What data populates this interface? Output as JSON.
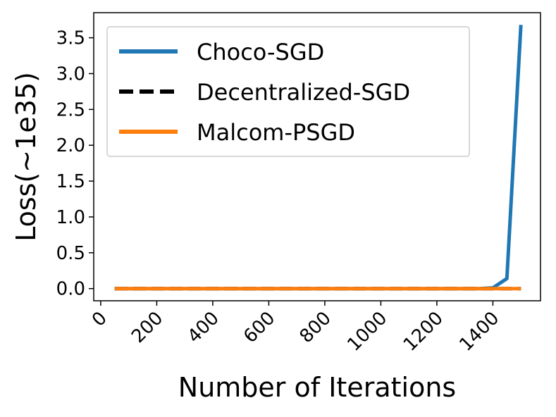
{
  "chart_data": {
    "type": "line",
    "title": "",
    "xlabel": "Number of Iterations",
    "ylabel": "Loss(~1e35)",
    "xlim": [
      -25,
      1570
    ],
    "ylim": [
      -0.17,
      3.85
    ],
    "xticks": [
      0,
      200,
      400,
      600,
      800,
      1000,
      1200,
      1400
    ],
    "xtick_labels": [
      "0",
      "200",
      "400",
      "600",
      "800",
      "1000",
      "1200",
      "1400"
    ],
    "yticks": [
      0.0,
      0.5,
      1.0,
      1.5,
      2.0,
      2.5,
      3.0,
      3.5
    ],
    "ytick_labels": [
      "0.0",
      "0.5",
      "1.0",
      "1.5",
      "2.0",
      "2.5",
      "3.0",
      "3.5"
    ],
    "legend_position": "top-right",
    "grid": false,
    "series": [
      {
        "name": "Choco-SGD",
        "color": "#1f77b4",
        "style": "solid",
        "x": [
          50,
          100,
          150,
          200,
          250,
          300,
          350,
          400,
          450,
          500,
          550,
          600,
          650,
          700,
          750,
          800,
          850,
          900,
          950,
          1000,
          1050,
          1100,
          1150,
          1200,
          1250,
          1300,
          1350,
          1400,
          1450,
          1500
        ],
        "values": [
          0,
          0,
          0,
          0,
          0,
          0,
          0,
          0,
          0,
          0,
          0,
          0,
          0,
          0,
          0,
          0,
          0,
          0,
          0,
          0,
          0,
          0,
          0,
          0,
          0,
          0,
          0,
          0.01,
          0.14,
          3.68
        ]
      },
      {
        "name": "Decentralized-SGD",
        "color": "#000000",
        "style": "dashed",
        "x": [
          50,
          100,
          150,
          200,
          250,
          300,
          350,
          400,
          450,
          500,
          550,
          600,
          650,
          700,
          750,
          800,
          850,
          900,
          950,
          1000,
          1050,
          1100,
          1150,
          1200,
          1250,
          1300,
          1350,
          1400,
          1450,
          1500
        ],
        "values": [
          0,
          0,
          0,
          0,
          0,
          0,
          0,
          0,
          0,
          0,
          0,
          0,
          0,
          0,
          0,
          0,
          0,
          0,
          0,
          0,
          0,
          0,
          0,
          0,
          0,
          0,
          0,
          0,
          0,
          0
        ]
      },
      {
        "name": "Malcom-PSGD",
        "color": "#ff7f0e",
        "style": "solid",
        "x": [
          50,
          100,
          150,
          200,
          250,
          300,
          350,
          400,
          450,
          500,
          550,
          600,
          650,
          700,
          750,
          800,
          850,
          900,
          950,
          1000,
          1050,
          1100,
          1150,
          1200,
          1250,
          1300,
          1350,
          1400,
          1450,
          1500
        ],
        "values": [
          0,
          0,
          0,
          0,
          0,
          0,
          0,
          0,
          0,
          0,
          0,
          0,
          0,
          0,
          0,
          0,
          0,
          0,
          0,
          0,
          0,
          0,
          0,
          0,
          0,
          0,
          0,
          0,
          0,
          0
        ]
      }
    ]
  }
}
